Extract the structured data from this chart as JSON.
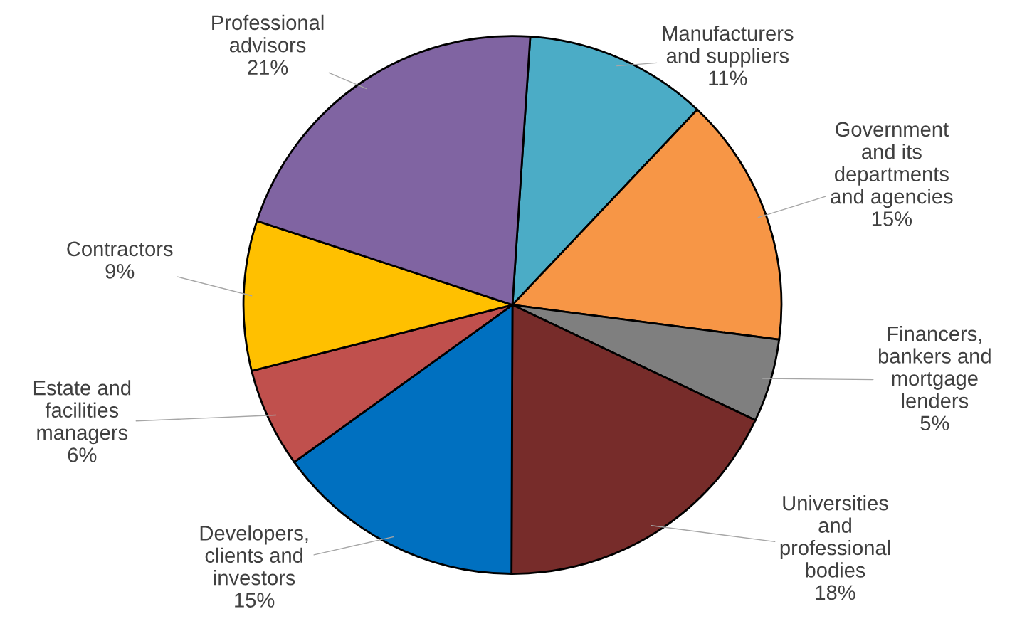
{
  "chart_data": {
    "type": "pie",
    "categories": [
      "Manufacturers\nand suppliers",
      "Government\nand its\ndepartments\nand agencies",
      "Financers,\nbankers and\nmortgage\nlenders",
      "Universities\nand\nprofessional\nbodies",
      "Developers,\nclients and\ninvestors",
      "Estate and\nfacilities\nmanagers",
      "Contractors",
      "Professional\nadvisors"
    ],
    "values": [
      11,
      15,
      5,
      18,
      15,
      6,
      9,
      21
    ],
    "value_labels": [
      "11%",
      "15%",
      "5%",
      "18%",
      "15%",
      "6%",
      "9%",
      "21%"
    ],
    "colors": [
      "#4bacc6",
      "#f79646",
      "#7f7f7f",
      "#772c2a",
      "#0070c0",
      "#c0504d",
      "#ffc000",
      "#8064a2"
    ]
  }
}
